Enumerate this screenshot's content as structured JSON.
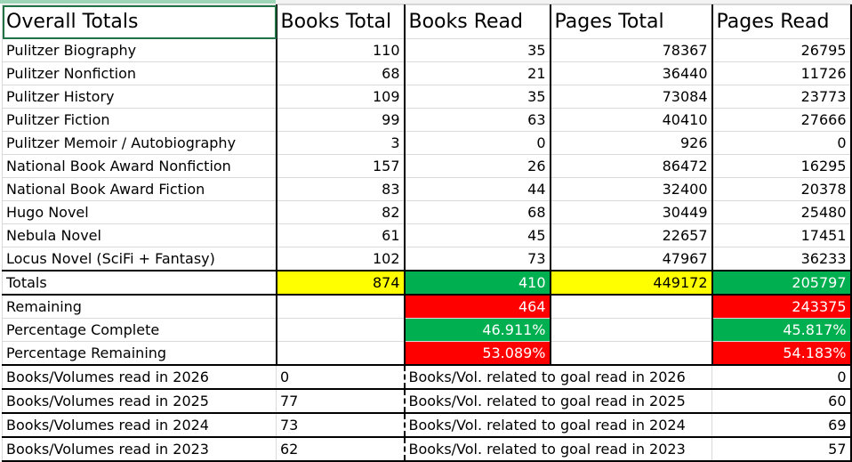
{
  "header": [
    "Overall Totals",
    "Books Total",
    "Books Read",
    "Pages Total",
    "Pages Read"
  ],
  "rows": [
    [
      "Pulitzer Biography",
      "110",
      "35",
      "78367",
      "26795"
    ],
    [
      "Pulitzer Nonfiction",
      "68",
      "21",
      "36440",
      "11726"
    ],
    [
      "Pulitzer History",
      "109",
      "35",
      "73084",
      "23773"
    ],
    [
      "Pulitzer Fiction",
      "99",
      "63",
      "40410",
      "27666"
    ],
    [
      "Pulitzer Memoir / Autobiography",
      "3",
      "0",
      "926",
      "0"
    ],
    [
      "National Book Award Nonfiction",
      "157",
      "26",
      "86472",
      "16295"
    ],
    [
      "National Book Award Fiction",
      "83",
      "44",
      "32400",
      "20378"
    ],
    [
      "Hugo Novel",
      "82",
      "68",
      "30449",
      "25480"
    ],
    [
      "Nebula Novel",
      "61",
      "45",
      "22657",
      "17451"
    ],
    [
      "Locus Novel (SciFi + Fantasy)",
      "102",
      "73",
      "47967",
      "36233"
    ]
  ],
  "totals": [
    "Totals",
    "874",
    "410",
    "449172",
    "205797"
  ],
  "summary": [
    [
      "Remaining",
      "",
      "464",
      "",
      "243375"
    ],
    [
      "Percentage Complete",
      "",
      "46.911%",
      "",
      "45.817%"
    ],
    [
      "Percentage Remaining",
      "",
      "53.089%",
      "",
      "54.183%"
    ]
  ],
  "years": [
    [
      "Books/Volumes read in 2026",
      "0",
      "Books/Vol. related to goal read in 2026",
      "0"
    ],
    [
      "Books/Volumes read in 2025",
      "77",
      "Books/Vol. related to goal read in 2025",
      "60"
    ],
    [
      "Books/Volumes read in 2024",
      "73",
      "Books/Vol. related to goal read in 2024",
      "69"
    ],
    [
      "Books/Volumes read in 2023",
      "62",
      "Books/Vol. related to goal read in 2023",
      "57"
    ]
  ],
  "colors": {
    "yellow": "#ffff00",
    "green": "#00b050",
    "red": "#ff0000",
    "selection": "#217346"
  }
}
